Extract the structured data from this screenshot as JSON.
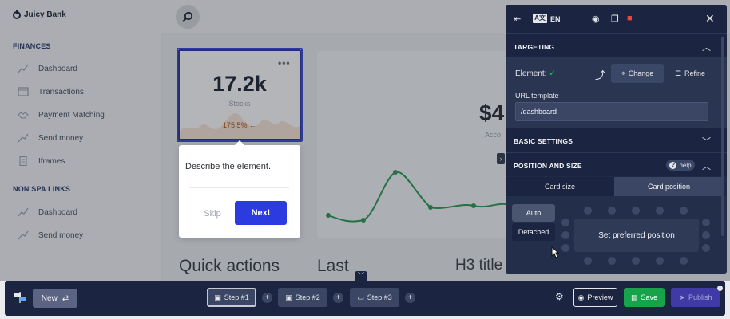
{
  "header": {
    "brand": "Juicy Bank",
    "search_icon": "search-icon"
  },
  "sidebar": {
    "sections": [
      {
        "title": "FINANCES",
        "items": [
          {
            "label": "Dashboard",
            "icon": "chart-line-icon"
          },
          {
            "label": "Transactions",
            "icon": "window-icon"
          },
          {
            "label": "Payment Matching",
            "icon": "handshake-icon"
          },
          {
            "label": "Send money",
            "icon": "send-icon"
          },
          {
            "label": "Iframes",
            "icon": "document-icon"
          }
        ]
      },
      {
        "title": "NON SPA LINKS",
        "items": [
          {
            "label": "Dashboard",
            "icon": "chart-line-icon"
          },
          {
            "label": "Send money",
            "icon": "send-icon"
          }
        ]
      }
    ]
  },
  "main": {
    "stat_card": {
      "value": "17.2k",
      "label": "Stocks",
      "trend": "175.5%"
    },
    "big_card": {
      "value": "$4",
      "sub": "Acco"
    },
    "headings": {
      "quick": "Quick actions",
      "last": "Last",
      "h3": "H3 title"
    }
  },
  "tooltip": {
    "text": "Describe the element.",
    "skip": "Skip",
    "next": "Next"
  },
  "panel": {
    "lang": "EN",
    "targeting": {
      "title": "TARGETING",
      "element_label": "Element:",
      "change": "Change",
      "refine": "Refine",
      "url_label": "URL template",
      "url_value": "/dashboard"
    },
    "basic": {
      "title": "BASIC SETTINGS"
    },
    "position": {
      "title": "POSITION AND SIZE",
      "help": "help",
      "tabs": [
        "Card size",
        "Card position"
      ],
      "options": [
        "Auto",
        "Detached"
      ],
      "preferred": "Set preferred position"
    }
  },
  "bottom": {
    "new_label": "New",
    "steps": [
      "Step #1",
      "Step #2",
      "Step #3"
    ],
    "preview": "Preview",
    "save": "Save",
    "publish": "Publish"
  },
  "colors": {
    "accent": "#2c3be0",
    "save": "#16a34a",
    "publish": "#3f3aa6",
    "panel": "#1f2a44"
  }
}
